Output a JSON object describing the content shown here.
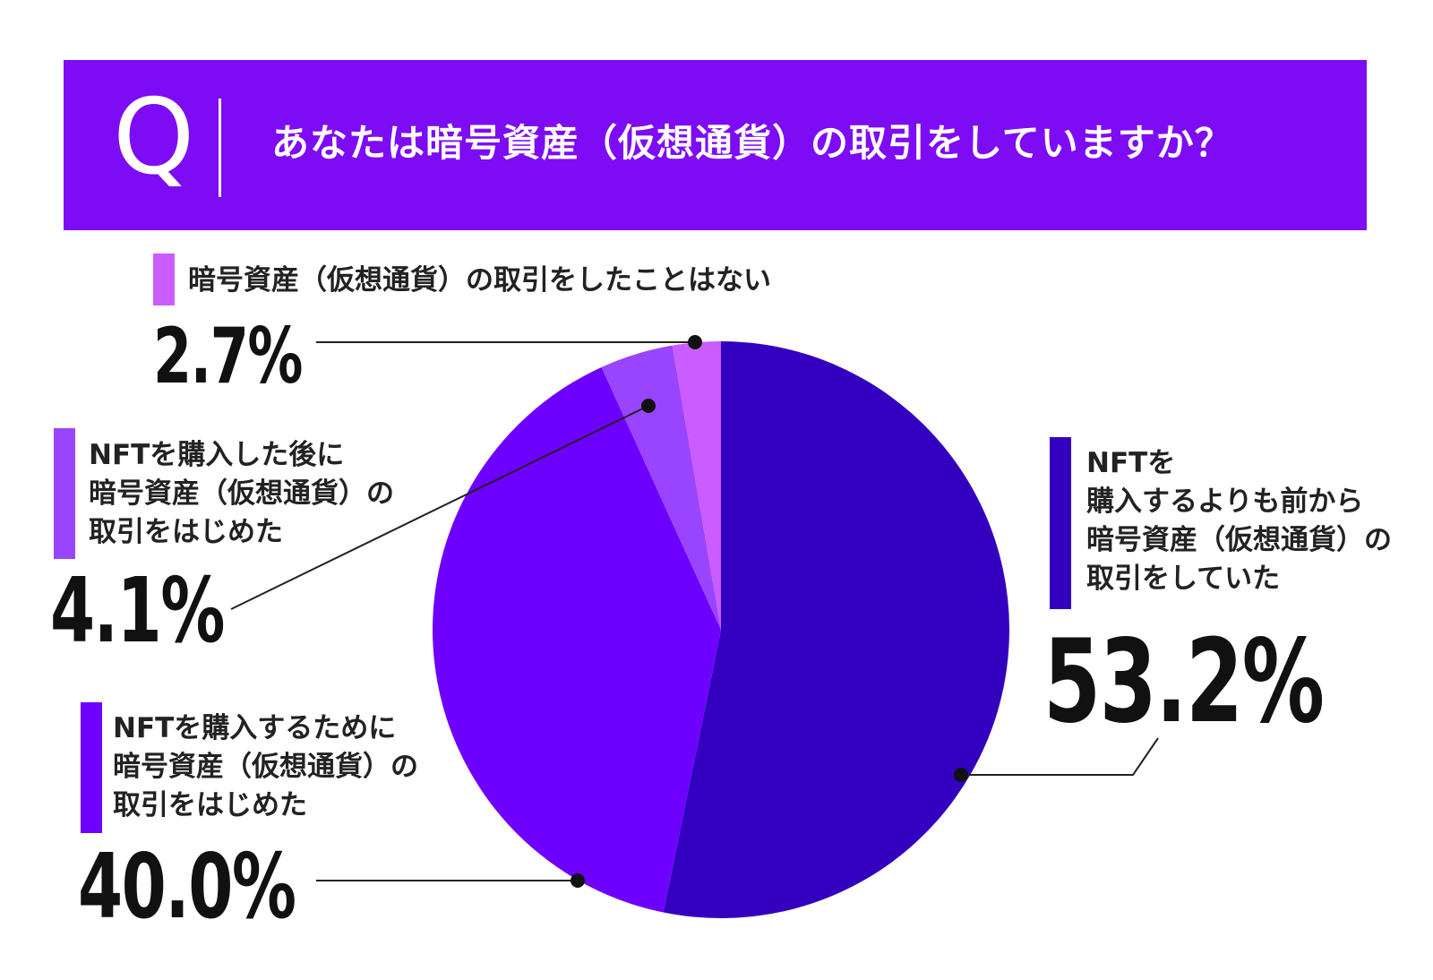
{
  "header": {
    "q_label": "Q",
    "question": "あなたは暗号資産（仮想通貨）の取引をしていますか？",
    "bg_color": "#7d0cf5"
  },
  "chart_data": {
    "type": "pie",
    "title": "あなたは暗号資産（仮想通貨）の取引をしていますか？",
    "unit": "%",
    "slices": [
      {
        "label": "NFTを購入するよりも前から暗号資産（仮想通貨）の取引をしていた",
        "value": 53.2,
        "display": "53.2%",
        "color": "#3400c0"
      },
      {
        "label": "NFTを購入するために暗号資産（仮想通貨）の取引をはじめた",
        "value": 40.0,
        "display": "40.0%",
        "color": "#6e00ff"
      },
      {
        "label": "NFTを購入した後に暗号資産（仮想通貨）の取引をはじめた",
        "value": 4.1,
        "display": "4.1%",
        "color": "#9945ff"
      },
      {
        "label": "暗号資産（仮想通貨）の取引をしたことはない",
        "value": 2.7,
        "display": "2.7%",
        "color": "#cb5cff"
      }
    ]
  },
  "legend": {
    "s0_lines": [
      "NFTを",
      "購入するよりも前から",
      "暗号資産（仮想通貨）の",
      "取引をしていた"
    ],
    "s1_lines": [
      "NFTを購入するために",
      "暗号資産（仮想通貨）の",
      "取引をはじめた"
    ],
    "s2_lines": [
      "NFTを購入した後に",
      "暗号資産（仮想通貨）の",
      "取引をはじめた"
    ],
    "s3_lines": [
      "暗号資産（仮想通貨）の取引をしたことはない"
    ]
  }
}
